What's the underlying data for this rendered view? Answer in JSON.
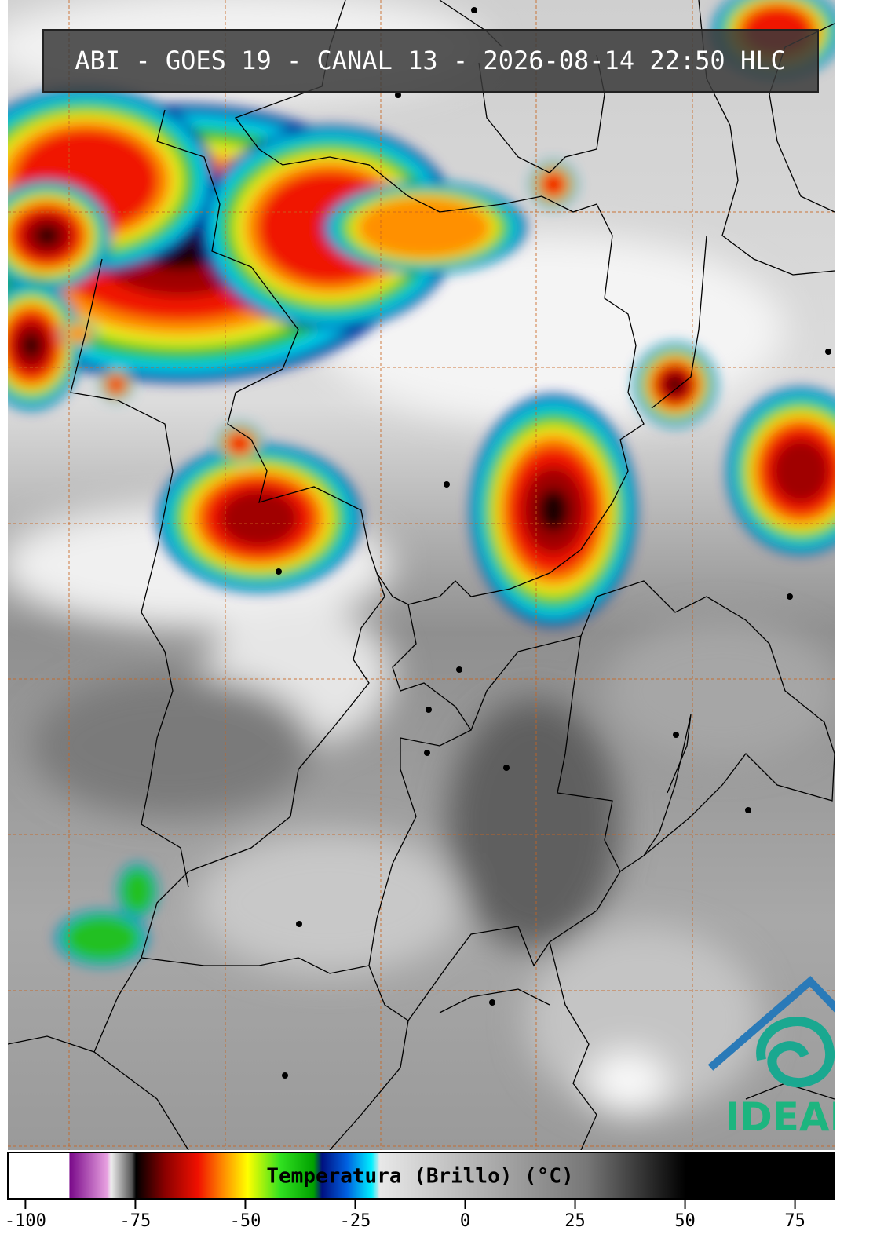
{
  "header": {
    "title": "ABI - GOES 19 - CANAL 13 - 2026-08-14 22:50 HLC"
  },
  "colorbar": {
    "label": "Temperatura (Brillo) (°C)",
    "range": [
      -104,
      84
    ],
    "ticks": [
      -100,
      -75,
      -50,
      -25,
      0,
      25,
      50,
      75
    ]
  },
  "logo": {
    "text": "IDEAM"
  }
}
